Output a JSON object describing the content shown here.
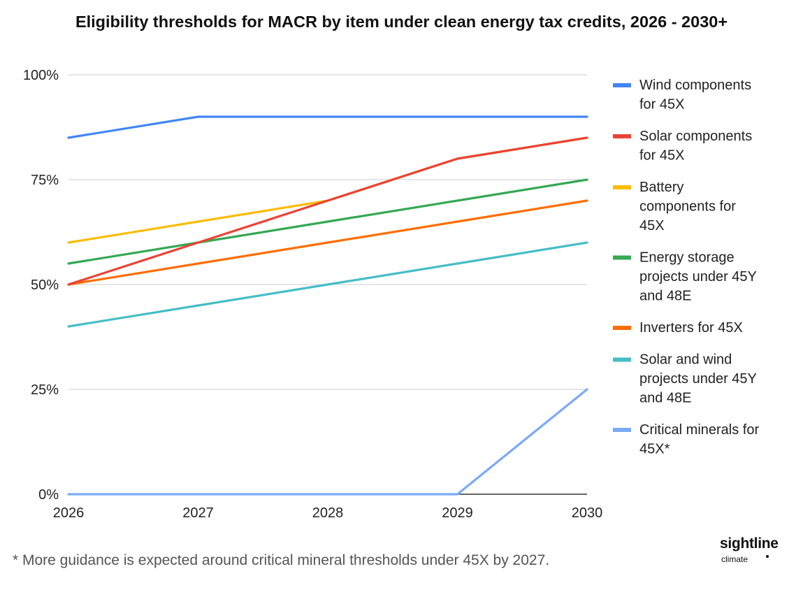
{
  "title": "Eligibility thresholds for MACR by item under clean energy tax credits, 2026 - 2030+",
  "footnote": "* More guidance is expected around critical mineral thresholds under 45X by 2027.",
  "logo": {
    "main": "sightline",
    "sub": "climate"
  },
  "chart_data": {
    "type": "line",
    "title": "Eligibility thresholds for MACR by item under clean energy tax credits, 2026 - 2030+",
    "xlabel": "",
    "ylabel": "",
    "x": [
      "2026",
      "2027",
      "2028",
      "2029",
      "2030"
    ],
    "ylim": [
      0,
      100
    ],
    "yticks": [
      0,
      25,
      50,
      75,
      100
    ],
    "ytick_labels": [
      "0%",
      "25%",
      "50%",
      "75%",
      "100%"
    ],
    "grid": true,
    "legend_position": "right",
    "series": [
      {
        "name": "Wind components for 45X",
        "color": "#4285f4",
        "values": [
          85,
          90,
          90,
          90,
          90
        ],
        "legend_lines": [
          "Wind components",
          "for 45X"
        ]
      },
      {
        "name": "Solar components for 45X",
        "color": "#ea4335",
        "values": [
          50,
          60,
          70,
          80,
          85
        ],
        "legend_lines": [
          "Solar components",
          "for 45X"
        ]
      },
      {
        "name": "Battery components for 45X",
        "color": "#fbbc04",
        "values": [
          60,
          65,
          70,
          80,
          85
        ],
        "legend_lines": [
          "Battery",
          "components for",
          "45X"
        ]
      },
      {
        "name": "Energy storage projects under 45Y and 48E",
        "color": "#34a853",
        "values": [
          55,
          60,
          65,
          70,
          75
        ],
        "legend_lines": [
          "Energy storage",
          "projects under 45Y",
          "and 48E"
        ]
      },
      {
        "name": "Inverters for 45X",
        "color": "#ff6d01",
        "values": [
          50,
          55,
          60,
          65,
          70
        ],
        "legend_lines": [
          "Inverters for 45X"
        ]
      },
      {
        "name": "Solar and wind projects under 45Y and 48E",
        "color": "#46bdc6",
        "values": [
          40,
          45,
          50,
          55,
          60
        ],
        "legend_lines": [
          "Solar and wind",
          "projects under 45Y",
          "and 48E"
        ]
      },
      {
        "name": "Critical minerals for 45X*",
        "color": "#7baaf7",
        "values": [
          0,
          0,
          0,
          0,
          25
        ],
        "legend_lines": [
          "Critical minerals for",
          "45X*"
        ]
      }
    ]
  }
}
